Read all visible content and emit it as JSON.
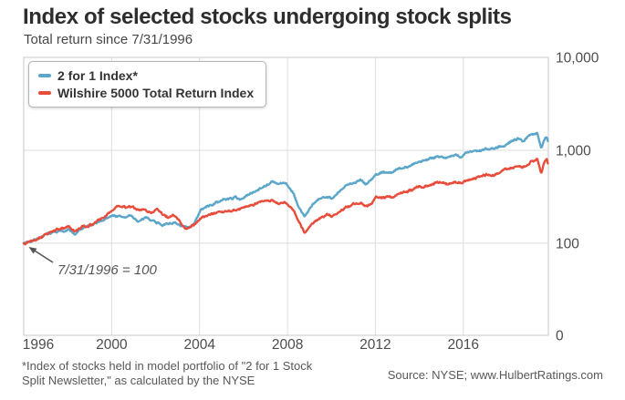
{
  "header": {
    "title": "Index of selected stocks undergoing stock splits",
    "subtitle": "Total return since 7/31/1996"
  },
  "footer": {
    "footnote_line1": "*Index of stocks held in model portfolio of \"2 for 1 Stock",
    "footnote_line2": "Split Newsletter,\" as calculated by the NYSE",
    "source": "Source: NYSE; www.HulbertRatings.com"
  },
  "chart_data": {
    "type": "line",
    "title": "Index of selected stocks undergoing stock splits",
    "subtitle": "Total return since 7/31/1996",
    "y_scale": "log",
    "grid": true,
    "legend_position": "top-left",
    "axis_side_y": "right",
    "ylim": [
      10.2,
      10000
    ],
    "xlim": [
      1996.58,
      2020.45
    ],
    "noise_amplitude": 0.035,
    "annotation": {
      "text": "7/31/1996 = 100"
    },
    "x_ticks": [
      {
        "label": "1996",
        "x": 1996.58
      },
      {
        "label": "2000",
        "x": 2000.58
      },
      {
        "label": "2004",
        "x": 2004.58
      },
      {
        "label": "2008",
        "x": 2008.58
      },
      {
        "label": "2012",
        "x": 2012.58
      },
      {
        "label": "2016",
        "x": 2016.58
      }
    ],
    "y_ticks": [
      {
        "label": "10,000",
        "value": 10000
      },
      {
        "label": "1,000",
        "value": 1000
      },
      {
        "label": "100",
        "value": 100
      },
      {
        "label": "0",
        "value": 0
      }
    ],
    "series": [
      {
        "name": "2 for 1 Index*",
        "color": "#5ba6c9",
        "points": [
          [
            1996.58,
            100
          ],
          [
            1997.08,
            112
          ],
          [
            1997.57,
            122
          ],
          [
            1998.07,
            132
          ],
          [
            1998.61,
            141
          ],
          [
            1998.9,
            124
          ],
          [
            1999.32,
            148
          ],
          [
            1999.81,
            158
          ],
          [
            2000.31,
            185
          ],
          [
            2000.72,
            200
          ],
          [
            2001.06,
            190
          ],
          [
            2001.43,
            196
          ],
          [
            2001.8,
            172
          ],
          [
            2002.26,
            186
          ],
          [
            2002.63,
            170
          ],
          [
            2003.0,
            158
          ],
          [
            2003.38,
            168
          ],
          [
            2003.71,
            150
          ],
          [
            2004.0,
            146
          ],
          [
            2004.29,
            162
          ],
          [
            2004.62,
            225
          ],
          [
            2005.12,
            260
          ],
          [
            2005.45,
            280
          ],
          [
            2005.86,
            300
          ],
          [
            2006.2,
            312
          ],
          [
            2006.44,
            298
          ],
          [
            2006.94,
            345
          ],
          [
            2007.44,
            412
          ],
          [
            2007.89,
            458
          ],
          [
            2008.18,
            425
          ],
          [
            2008.52,
            442
          ],
          [
            2008.81,
            352
          ],
          [
            2009.1,
            242
          ],
          [
            2009.35,
            194
          ],
          [
            2009.64,
            243
          ],
          [
            2010.01,
            290
          ],
          [
            2010.38,
            330
          ],
          [
            2010.67,
            310
          ],
          [
            2011.0,
            365
          ],
          [
            2011.33,
            420
          ],
          [
            2011.67,
            468
          ],
          [
            2011.91,
            490
          ],
          [
            2012.16,
            440
          ],
          [
            2012.41,
            490
          ],
          [
            2012.62,
            545
          ],
          [
            2012.95,
            590
          ],
          [
            2013.32,
            575
          ],
          [
            2013.74,
            640
          ],
          [
            2014.24,
            700
          ],
          [
            2014.65,
            760
          ],
          [
            2015.06,
            820
          ],
          [
            2015.44,
            880
          ],
          [
            2015.85,
            838
          ],
          [
            2016.18,
            886
          ],
          [
            2016.47,
            852
          ],
          [
            2016.72,
            935
          ],
          [
            2017.14,
            965
          ],
          [
            2017.55,
            1020
          ],
          [
            2018.01,
            1080
          ],
          [
            2018.42,
            1150
          ],
          [
            2018.79,
            1250
          ],
          [
            2019.08,
            1330
          ],
          [
            2019.25,
            1255
          ],
          [
            2019.5,
            1370
          ],
          [
            2019.75,
            1480
          ],
          [
            2019.95,
            1570
          ],
          [
            2020.12,
            1055
          ],
          [
            2020.24,
            1280
          ],
          [
            2020.37,
            1420
          ],
          [
            2020.43,
            1270
          ]
        ]
      },
      {
        "name": "Wilshire 5000 Total Return Index",
        "color": "#e84c3b",
        "points": [
          [
            1996.58,
            100
          ],
          [
            1997.08,
            114
          ],
          [
            1997.57,
            126
          ],
          [
            1998.07,
            138
          ],
          [
            1998.61,
            150
          ],
          [
            1998.9,
            131
          ],
          [
            1999.32,
            152
          ],
          [
            1999.81,
            163
          ],
          [
            2000.31,
            196
          ],
          [
            2000.6,
            230
          ],
          [
            2000.93,
            250
          ],
          [
            2001.22,
            242
          ],
          [
            2001.51,
            250
          ],
          [
            2001.8,
            222
          ],
          [
            2002.13,
            238
          ],
          [
            2002.38,
            215
          ],
          [
            2002.63,
            230
          ],
          [
            2002.88,
            205
          ],
          [
            2003.13,
            190
          ],
          [
            2003.38,
            200
          ],
          [
            2003.63,
            172
          ],
          [
            2003.88,
            148
          ],
          [
            2004.0,
            142
          ],
          [
            2004.17,
            155
          ],
          [
            2004.37,
            163
          ],
          [
            2004.62,
            183
          ],
          [
            2004.95,
            196
          ],
          [
            2005.28,
            206
          ],
          [
            2005.62,
            212
          ],
          [
            2005.95,
            222
          ],
          [
            2006.28,
            232
          ],
          [
            2006.61,
            242
          ],
          [
            2006.94,
            252
          ],
          [
            2007.27,
            266
          ],
          [
            2007.6,
            280
          ],
          [
            2007.89,
            290
          ],
          [
            2008.18,
            268
          ],
          [
            2008.52,
            276
          ],
          [
            2008.81,
            228
          ],
          [
            2009.1,
            168
          ],
          [
            2009.35,
            131
          ],
          [
            2009.64,
            160
          ],
          [
            2010.01,
            186
          ],
          [
            2010.38,
            206
          ],
          [
            2010.67,
            196
          ],
          [
            2011.0,
            225
          ],
          [
            2011.33,
            248
          ],
          [
            2011.67,
            268
          ],
          [
            2011.91,
            280
          ],
          [
            2012.16,
            252
          ],
          [
            2012.41,
            278
          ],
          [
            2012.62,
            309
          ],
          [
            2012.95,
            322
          ],
          [
            2013.32,
            315
          ],
          [
            2013.74,
            345
          ],
          [
            2014.24,
            372
          ],
          [
            2014.65,
            398
          ],
          [
            2015.06,
            424
          ],
          [
            2015.44,
            455
          ],
          [
            2015.85,
            428
          ],
          [
            2016.18,
            458
          ],
          [
            2016.47,
            438
          ],
          [
            2016.72,
            486
          ],
          [
            2017.14,
            510
          ],
          [
            2017.55,
            545
          ],
          [
            2018.01,
            570
          ],
          [
            2018.42,
            600
          ],
          [
            2018.79,
            640
          ],
          [
            2019.08,
            690
          ],
          [
            2019.25,
            650
          ],
          [
            2019.5,
            700
          ],
          [
            2019.75,
            760
          ],
          [
            2019.95,
            800
          ],
          [
            2020.12,
            556
          ],
          [
            2020.24,
            700
          ],
          [
            2020.37,
            790
          ],
          [
            2020.43,
            705
          ]
        ]
      }
    ]
  }
}
